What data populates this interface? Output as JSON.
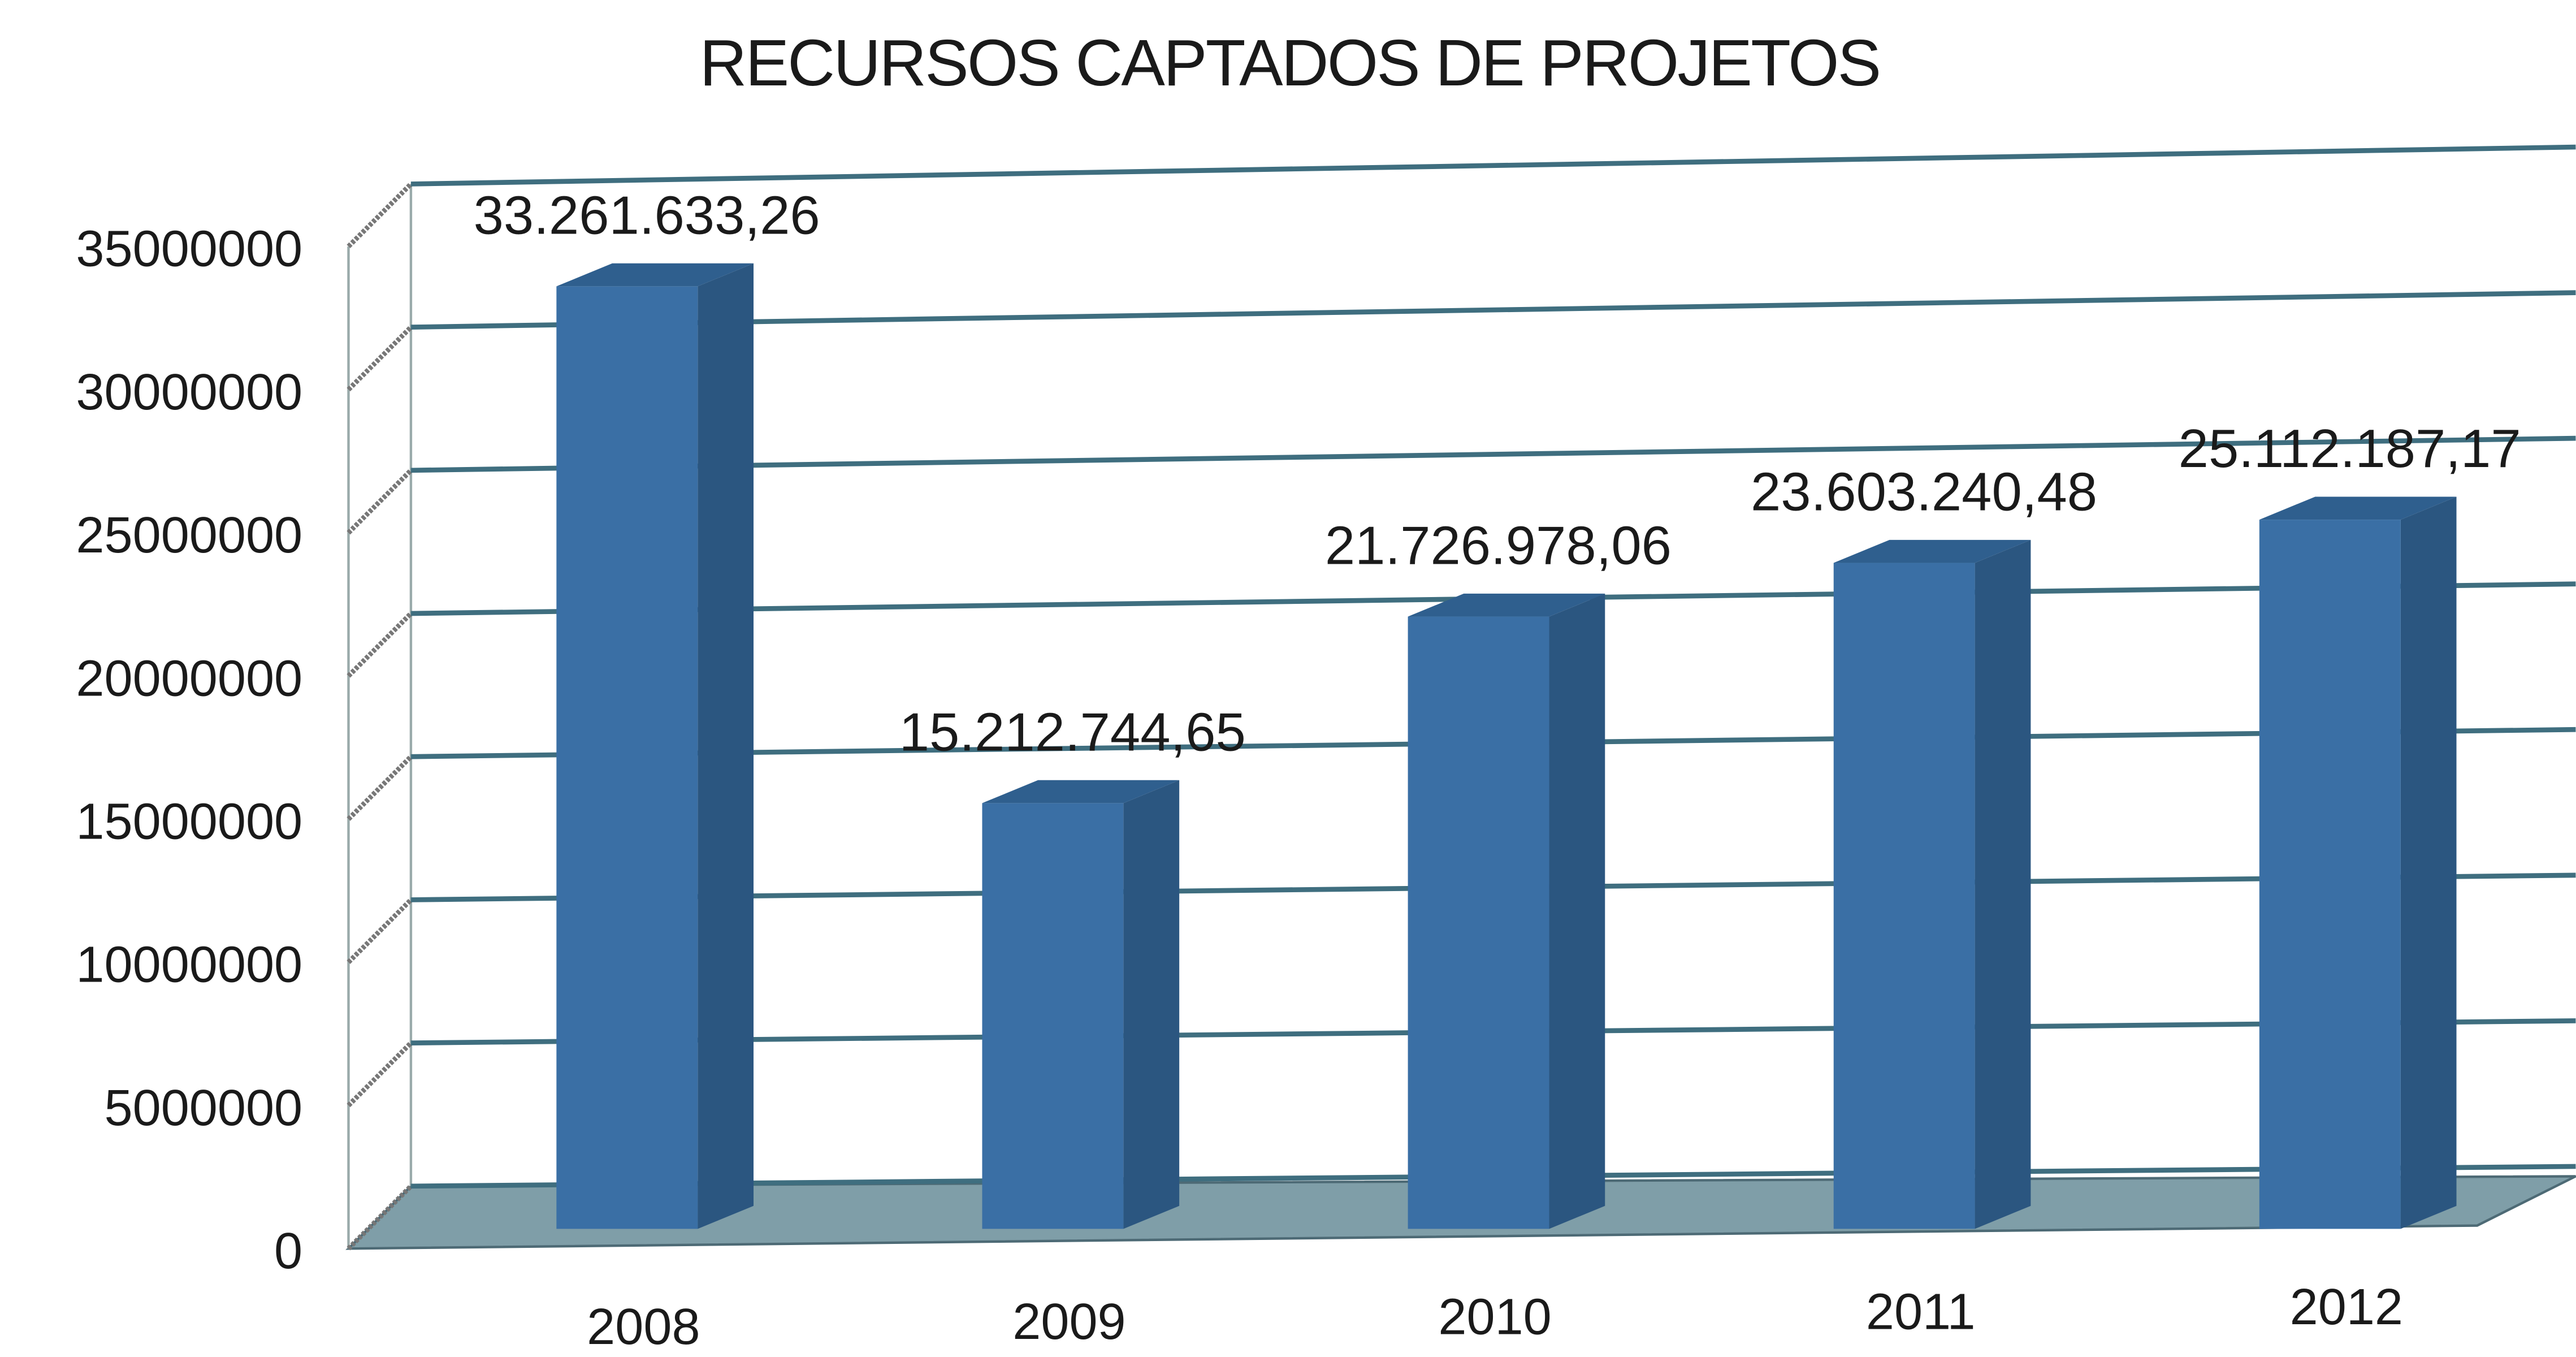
{
  "chart_data": {
    "type": "bar3d",
    "title": "RECURSOS CAPTADOS DE PROJETOS",
    "categories": [
      "2008",
      "2009",
      "2010",
      "2011",
      "2012"
    ],
    "values": [
      33261633.26,
      15212744.65,
      21726978.06,
      23603240.48,
      25112187.17
    ],
    "value_labels": [
      "33.261.633,26",
      "15.212.744,65",
      "21.726.978,06",
      "23.603.240,48",
      "25.112.187,17"
    ],
    "color": "#3a6fa5",
    "ylim": [
      0,
      35000000
    ],
    "yticks": [
      0,
      5000000,
      10000000,
      15000000,
      20000000,
      25000000,
      30000000,
      35000000
    ],
    "grid": true
  }
}
